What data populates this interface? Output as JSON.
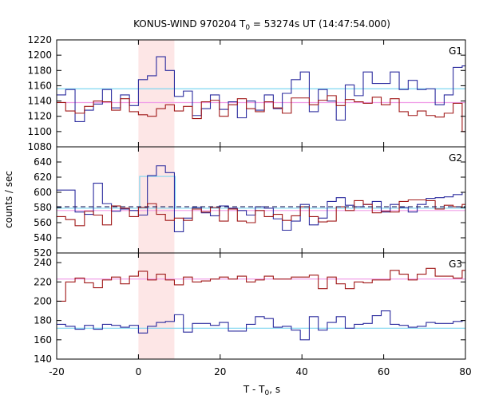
{
  "chart_data": {
    "type": "line",
    "title_main": "KONUS-WIND 970204 T",
    "title_sub": "0",
    "title_rest": " = 53274s UT (14:47:54.000)",
    "xlabel_main": "T - T",
    "xlabel_sub": "0",
    "xlabel_rest": ", s",
    "ylabel": "counts / sec",
    "xlim": [
      -20,
      80
    ],
    "xticks": [
      -20,
      0,
      20,
      40,
      60,
      80
    ],
    "highlight_interval": [
      0,
      8.8
    ],
    "panels": [
      {
        "label": "G1",
        "ylim": [
          1080,
          1220
        ],
        "yticks": [
          1080,
          1100,
          1120,
          1140,
          1160,
          1180,
          1200,
          1220
        ],
        "bin_edges": [
          -20,
          -17.8,
          -15.5,
          -13.2,
          -11,
          -8.8,
          -6.6,
          -4.4,
          -2.2,
          0,
          2.2,
          4.4,
          6.6,
          8.8,
          11,
          13.2,
          15.4,
          17.6,
          19.8,
          22,
          24.2,
          26.4,
          28.6,
          30.8,
          33,
          35.2,
          37.4,
          39.6,
          41.8,
          44,
          46.2,
          48.4,
          50.6,
          52.8,
          55,
          57.2,
          59.4,
          61.6,
          63.8,
          66,
          68.2,
          70.4,
          72.6,
          74.8,
          77,
          79.2,
          80
        ],
        "series": [
          {
            "color": "#2b2b9e",
            "values": [
              1148,
              1155,
              1113,
              1128,
              1136,
              1155,
              1131,
              1148,
              1134,
              1168,
              1173,
              1198,
              1180,
              1146,
              1153,
              1121,
              1130,
              1148,
              1129,
              1139,
              1118,
              1140,
              1128,
              1148,
              1130,
              1150,
              1168,
              1178,
              1126,
              1155,
              1140,
              1115,
              1161,
              1147,
              1178,
              1163,
              1163,
              1178,
              1155,
              1167,
              1155,
              1156,
              1135,
              1148,
              1184,
              1186
            ]
          },
          {
            "color": "#a01818",
            "values": [
              1138,
              1127,
              1124,
              1133,
              1140,
              1139,
              1128,
              1143,
              1126,
              1122,
              1120,
              1130,
              1135,
              1127,
              1133,
              1117,
              1139,
              1141,
              1120,
              1135,
              1143,
              1130,
              1126,
              1139,
              1131,
              1124,
              1144,
              1144,
              1135,
              1141,
              1147,
              1134,
              1142,
              1139,
              1137,
              1145,
              1135,
              1143,
              1126,
              1121,
              1127,
              1121,
              1119,
              1124,
              1137,
              1100
            ]
          }
        ],
        "background_levels": [
          {
            "color": "#7fd6f0",
            "value": 1156
          },
          {
            "color": "#f0a0e8",
            "value": 1138
          }
        ]
      },
      {
        "label": "G2",
        "ylim": [
          520,
          660
        ],
        "yticks": [
          520,
          540,
          560,
          580,
          600,
          620,
          640
        ],
        "bin_edges": [
          -20,
          -17.8,
          -15.5,
          -13.2,
          -11,
          -8.8,
          -6.6,
          -4.4,
          -2.2,
          0,
          2.2,
          4.4,
          6.6,
          8.8,
          11,
          13.2,
          15.4,
          17.6,
          19.8,
          22,
          24.2,
          26.4,
          28.6,
          30.8,
          33,
          35.2,
          37.4,
          39.6,
          41.8,
          44,
          46.2,
          48.4,
          50.6,
          52.8,
          55,
          57.2,
          59.4,
          61.6,
          63.8,
          66,
          68.2,
          70.4,
          72.6,
          74.8,
          77,
          79.2,
          80
        ],
        "series": [
          {
            "color": "#2b2b9e",
            "values": [
              603,
              603,
              574,
              571,
              612,
              585,
              575,
              578,
              576,
              570,
              622,
              635,
              626,
              548,
              566,
              580,
              573,
              569,
              582,
              579,
              576,
              570,
              581,
              579,
              565,
              550,
              562,
              584,
              557,
              566,
              588,
              593,
              583,
              581,
              584,
              588,
              574,
              584,
              580,
              574,
              584,
              592,
              593,
              594,
              597,
              600
            ]
          },
          {
            "color": "#a01818",
            "values": [
              568,
              564,
              556,
              575,
              570,
              557,
              582,
              579,
              568,
              580,
              585,
              571,
              563,
              566,
              563,
              578,
              574,
              580,
              562,
              578,
              562,
              560,
              576,
              568,
              571,
              563,
              569,
              581,
              568,
              561,
              562,
              581,
              576,
              589,
              584,
              573,
              575,
              574,
              588,
              590,
              590,
              589,
              578,
              583,
              581,
              584
            ]
          }
        ],
        "background_levels": [
          {
            "color": "#7fd6f0",
            "value": 579
          },
          {
            "color": "#f0a0e8",
            "value": 576
          }
        ],
        "dashed_level": 581,
        "highlight_box": {
          "x": [
            0.3,
            9
          ],
          "level": 621
        }
      },
      {
        "label": "G3",
        "ylim": [
          140,
          250
        ],
        "yticks": [
          140,
          160,
          180,
          200,
          220,
          240
        ],
        "bin_edges": [
          -20,
          -17.8,
          -15.5,
          -13.2,
          -11,
          -8.8,
          -6.6,
          -4.4,
          -2.2,
          0,
          2.2,
          4.4,
          6.6,
          8.8,
          11,
          13.2,
          15.4,
          17.6,
          19.8,
          22,
          24.2,
          26.4,
          28.6,
          30.8,
          33,
          35.2,
          37.4,
          39.6,
          41.8,
          44,
          46.2,
          48.4,
          50.6,
          52.8,
          55,
          57.2,
          59.4,
          61.6,
          63.8,
          66,
          68.2,
          70.4,
          72.6,
          74.8,
          77,
          79.2,
          80
        ],
        "series": [
          {
            "color": "#2b2b9e",
            "values": [
              176,
              174,
              171,
              175,
              171,
              176,
              175,
              173,
              175,
              167,
              174,
              178,
              179,
              186,
              168,
              177,
              177,
              175,
              178,
              169,
              169,
              176,
              184,
              182,
              173,
              174,
              170,
              160,
              184,
              170,
              178,
              184,
              172,
              176,
              177,
              185,
              190,
              176,
              175,
              173,
              174,
              178,
              177,
              177,
              179,
              180
            ]
          },
          {
            "color": "#a01818",
            "values": [
              200,
              220,
              224,
              219,
              214,
              222,
              225,
              218,
              226,
              231,
              222,
              228,
              222,
              217,
              225,
              220,
              221,
              223,
              225,
              223,
              226,
              220,
              222,
              226,
              223,
              223,
              225,
              225,
              227,
              213,
              225,
              218,
              213,
              220,
              219,
              222,
              222,
              232,
              228,
              222,
              228,
              234,
              226,
              226,
              224,
              232
            ]
          }
        ],
        "background_levels": [
          {
            "color": "#7fd6f0",
            "value": 172
          },
          {
            "color": "#f0a0e8",
            "value": 223
          }
        ]
      }
    ]
  }
}
